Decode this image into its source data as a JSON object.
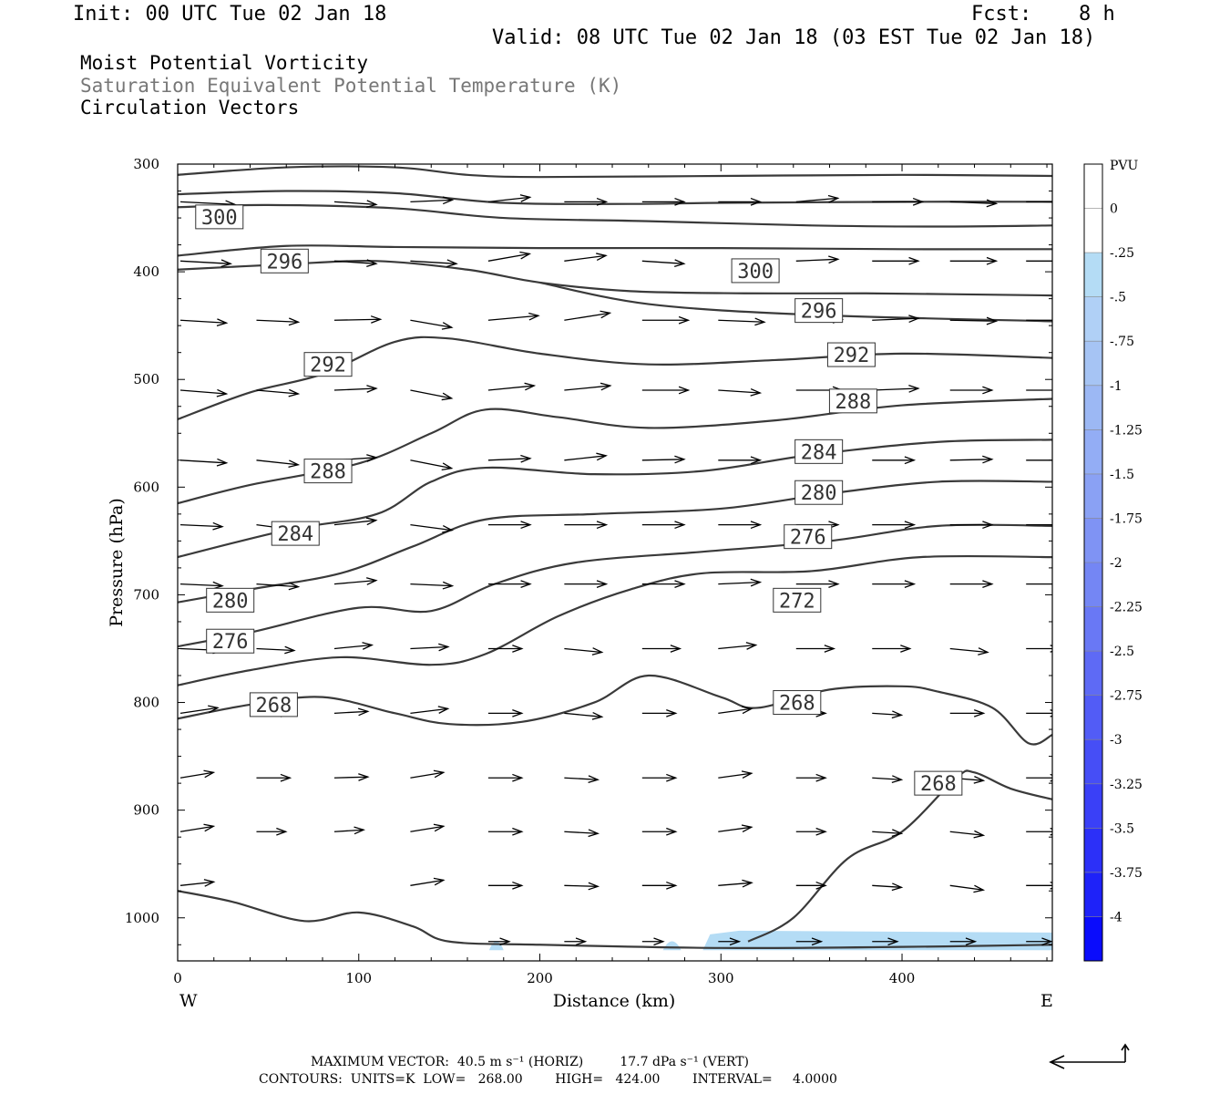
{
  "header": {
    "init": "Init: 00 UTC Tue 02 Jan 18",
    "fcst_label": "Fcst:",
    "fcst_value": "8 h",
    "valid": "Valid: 08 UTC Tue 02 Jan 18 (03 EST Tue 02 Jan 18)"
  },
  "legend": {
    "line1": "Moist Potential Vorticity",
    "line2": "Saturation Equivalent Potential Temperature (K)",
    "line3": "Circulation Vectors"
  },
  "colors": {
    "contour": "#3a3a3a",
    "vector": "#000000",
    "mpv_fill": "#b4dcf5"
  },
  "footer": {
    "max_vector": "MAXIMUM VECTOR:  40.5 m s⁻¹ (HORIZ)         17.7 dPa s⁻¹ (VERT)",
    "contours": "CONTOURS:  UNITS=K  LOW=   268.00        HIGH=   424.00        INTERVAL=     4.0000"
  },
  "chart_data": {
    "type": "line",
    "xlabel": "Distance (km)",
    "ylabel": "Pressure (hPa)",
    "xlim": [
      0,
      483
    ],
    "ylim": [
      300,
      1040
    ],
    "y_inverted": true,
    "x_ticks": [
      0,
      100,
      200,
      300,
      400
    ],
    "y_ticks": [
      300,
      400,
      500,
      600,
      700,
      800,
      900,
      1000
    ],
    "x_end_labels": {
      "left": "W",
      "right": "E"
    },
    "colorbar": {
      "title": "PVU",
      "levels": [
        "0",
        "-.25",
        "-.5",
        "-.75",
        "-1",
        "-1.25",
        "-1.5",
        "-1.75",
        "-2",
        "-2.25",
        "-2.5",
        "-2.75",
        "-3",
        "-3.25",
        "-3.5",
        "-3.75",
        "-4"
      ],
      "colors": [
        "#ffffff",
        "#ffffff",
        "#b4dcf5",
        "#b0d0f6",
        "#a6c4f4",
        "#9cb8f4",
        "#93adf5",
        "#8aa1f4",
        "#7f93f4",
        "#7486f4",
        "#6978f5",
        "#5e6af5",
        "#525cf6",
        "#464ef6",
        "#3a40f7",
        "#2c30f8",
        "#1e22f9",
        "#0a0cfc"
      ]
    },
    "contours": [
      {
        "level": "",
        "points": [
          [
            0,
            310
          ],
          [
            60,
            303
          ],
          [
            120,
            303
          ],
          [
            160,
            310
          ],
          [
            200,
            312
          ],
          [
            300,
            311
          ],
          [
            400,
            310
          ],
          [
            483,
            311
          ]
        ]
      },
      {
        "level": "",
        "points": [
          [
            0,
            328
          ],
          [
            60,
            325
          ],
          [
            120,
            327
          ],
          [
            180,
            336
          ],
          [
            250,
            337
          ],
          [
            300,
            336
          ],
          [
            400,
            335
          ],
          [
            483,
            335
          ]
        ]
      },
      {
        "level": "300",
        "points": [
          [
            0,
            340
          ],
          [
            50,
            338
          ],
          [
            120,
            341
          ],
          [
            180,
            350
          ],
          [
            260,
            353
          ],
          [
            350,
            357
          ],
          [
            420,
            358
          ],
          [
            483,
            357
          ]
        ]
      },
      {
        "level": "",
        "points": [
          [
            0,
            385
          ],
          [
            60,
            376
          ],
          [
            120,
            377
          ],
          [
            200,
            378
          ],
          [
            300,
            378
          ],
          [
            400,
            379
          ],
          [
            483,
            379
          ]
        ]
      },
      {
        "level": "296",
        "points": [
          [
            0,
            398
          ],
          [
            60,
            393
          ],
          [
            110,
            390
          ],
          [
            160,
            398
          ],
          [
            200,
            410
          ],
          [
            250,
            418
          ],
          [
            313,
            420
          ],
          [
            380,
            420
          ],
          [
            483,
            422
          ]
        ]
      },
      {
        "level": "",
        "points": [
          [
            200,
            410
          ],
          [
            260,
            430
          ],
          [
            350,
            440
          ],
          [
            483,
            446
          ]
        ]
      },
      {
        "level": "292",
        "points": [
          [
            0,
            537
          ],
          [
            40,
            512
          ],
          [
            80,
            495
          ],
          [
            120,
            465
          ],
          [
            150,
            462
          ],
          [
            200,
            476
          ],
          [
            260,
            486
          ],
          [
            330,
            482
          ],
          [
            400,
            476
          ],
          [
            483,
            480
          ]
        ]
      },
      {
        "level": "288",
        "points": [
          [
            0,
            615
          ],
          [
            40,
            598
          ],
          [
            100,
            578
          ],
          [
            140,
            550
          ],
          [
            170,
            528
          ],
          [
            210,
            535
          ],
          [
            260,
            545
          ],
          [
            330,
            538
          ],
          [
            400,
            524
          ],
          [
            483,
            518
          ]
        ]
      },
      {
        "level": "284",
        "points": [
          [
            0,
            665
          ],
          [
            60,
            640
          ],
          [
            110,
            625
          ],
          [
            140,
            595
          ],
          [
            170,
            582
          ],
          [
            230,
            588
          ],
          [
            290,
            585
          ],
          [
            350,
            570
          ],
          [
            420,
            558
          ],
          [
            483,
            556
          ]
        ]
      },
      {
        "level": "280",
        "points": [
          [
            0,
            707
          ],
          [
            40,
            695
          ],
          [
            90,
            680
          ],
          [
            130,
            655
          ],
          [
            170,
            630
          ],
          [
            230,
            625
          ],
          [
            300,
            620
          ],
          [
            360,
            606
          ],
          [
            420,
            595
          ],
          [
            483,
            595
          ]
        ]
      },
      {
        "level": "276",
        "points": [
          [
            0,
            748
          ],
          [
            40,
            735
          ],
          [
            100,
            712
          ],
          [
            140,
            715
          ],
          [
            175,
            690
          ],
          [
            220,
            670
          ],
          [
            290,
            660
          ],
          [
            360,
            650
          ],
          [
            420,
            636
          ],
          [
            483,
            636
          ]
        ]
      },
      {
        "level": "272",
        "points": [
          [
            0,
            784
          ],
          [
            40,
            770
          ],
          [
            90,
            758
          ],
          [
            140,
            765
          ],
          [
            170,
            755
          ],
          [
            210,
            720
          ],
          [
            250,
            695
          ],
          [
            290,
            680
          ],
          [
            350,
            678
          ],
          [
            410,
            665
          ],
          [
            483,
            665
          ]
        ]
      },
      {
        "level": "268",
        "points": [
          [
            0,
            815
          ],
          [
            40,
            802
          ],
          [
            80,
            795
          ],
          [
            120,
            810
          ],
          [
            150,
            820
          ],
          [
            190,
            818
          ],
          [
            230,
            800
          ],
          [
            260,
            775
          ],
          [
            300,
            795
          ],
          [
            320,
            805
          ],
          [
            360,
            788
          ],
          [
            400,
            785
          ],
          [
            420,
            790
          ],
          [
            450,
            805
          ],
          [
            470,
            838
          ],
          [
            483,
            830
          ]
        ]
      },
      {
        "level": "268",
        "points": [
          [
            315,
            1022
          ],
          [
            340,
            1000
          ],
          [
            370,
            945
          ],
          [
            400,
            920
          ],
          [
            430,
            870
          ],
          [
            440,
            865
          ],
          [
            460,
            880
          ],
          [
            483,
            890
          ]
        ]
      },
      {
        "level": "",
        "points": [
          [
            0,
            975
          ],
          [
            30,
            985
          ],
          [
            70,
            1003
          ],
          [
            100,
            995
          ],
          [
            130,
            1008
          ],
          [
            150,
            1022
          ],
          [
            200,
            1025
          ],
          [
            300,
            1028
          ],
          [
            400,
            1027
          ],
          [
            483,
            1025
          ]
        ]
      }
    ],
    "contour_labels": [
      {
        "text": "300",
        "x": 18,
        "y": 349
      },
      {
        "text": "296",
        "x": 54,
        "y": 390
      },
      {
        "text": "300",
        "x": 314,
        "y": 399
      },
      {
        "text": "296",
        "x": 349,
        "y": 436
      },
      {
        "text": "292",
        "x": 78,
        "y": 486
      },
      {
        "text": "292",
        "x": 367,
        "y": 477
      },
      {
        "text": "288",
        "x": 368,
        "y": 520
      },
      {
        "text": "288",
        "x": 78,
        "y": 585
      },
      {
        "text": "284",
        "x": 349,
        "y": 567
      },
      {
        "text": "280",
        "x": 349,
        "y": 605
      },
      {
        "text": "284",
        "x": 60,
        "y": 643
      },
      {
        "text": "276",
        "x": 343,
        "y": 646
      },
      {
        "text": "280",
        "x": 24,
        "y": 705
      },
      {
        "text": "272",
        "x": 337,
        "y": 705
      },
      {
        "text": "276",
        "x": 24,
        "y": 743
      },
      {
        "text": "268",
        "x": 48,
        "y": 802
      },
      {
        "text": "268",
        "x": 337,
        "y": 800
      },
      {
        "text": "268",
        "x": 415,
        "y": 875
      }
    ],
    "vector_field": {
      "x": [
        0,
        42,
        85,
        127,
        170,
        212,
        255,
        297,
        340,
        382,
        425,
        467
      ],
      "rows": [
        {
          "p": 335,
          "u": [
            1.3,
            0,
            1.0,
            1.0,
            1.0,
            1.0,
            1.0,
            1.0,
            1.0,
            1.2,
            1.1,
            1.0
          ],
          "w": [
            -3,
            0,
            -3,
            2,
            5,
            0,
            0,
            0,
            4,
            0,
            -2,
            0
          ]
        },
        {
          "p": 390,
          "u": [
            1.2,
            0,
            1.0,
            1.1,
            1.0,
            1.0,
            1.0,
            0,
            1.0,
            1.1,
            1.1,
            1.0
          ],
          "w": [
            -3,
            0,
            -3,
            -3,
            8,
            6,
            -3,
            0,
            2,
            0,
            0,
            0
          ]
        },
        {
          "p": 445,
          "u": [
            1.1,
            1.0,
            1.1,
            1.0,
            1.2,
            1.1,
            1.1,
            1.1,
            1.1,
            1.1,
            1.1,
            1.0
          ],
          "w": [
            -3,
            -2,
            1,
            -8,
            5,
            8,
            0,
            -2,
            1,
            2,
            -1,
            0
          ]
        },
        {
          "p": 510,
          "u": [
            1.1,
            1.0,
            1.0,
            1.0,
            1.1,
            1.1,
            1.1,
            1.0,
            1.1,
            1.1,
            1.0,
            1.0
          ],
          "w": [
            -4,
            -4,
            2,
            -9,
            5,
            5,
            0,
            -3,
            0,
            2,
            0,
            0
          ]
        },
        {
          "p": 575,
          "u": [
            1.1,
            1.0,
            1.0,
            1.0,
            1.0,
            1.0,
            1.0,
            1.0,
            1.0,
            1.0,
            1.0,
            1.0
          ],
          "w": [
            -3,
            -5,
            3,
            -9,
            2,
            5,
            1,
            0,
            2,
            0,
            1,
            0
          ]
        },
        {
          "p": 635,
          "u": [
            1.0,
            1.0,
            1.0,
            1.0,
            1.0,
            1.0,
            1.0,
            1.0,
            1.0,
            1.0,
            1.0,
            1.0
          ],
          "w": [
            -2,
            -6,
            5,
            -6,
            0,
            0,
            0,
            0,
            0,
            0,
            0,
            0
          ]
        },
        {
          "p": 690,
          "u": [
            1.0,
            1.0,
            1.0,
            1.0,
            1.0,
            1.0,
            1.0,
            1.0,
            1.0,
            1.0,
            1.0,
            1.0
          ],
          "w": [
            -2,
            -3,
            4,
            -2,
            0,
            0,
            0,
            2,
            0,
            0,
            0,
            0
          ]
        },
        {
          "p": 750,
          "u": [
            1.0,
            0.9,
            0.9,
            0.9,
            0.8,
            0.9,
            0.9,
            0.9,
            0.9,
            0.9,
            0.9,
            0.8
          ],
          "w": [
            -2,
            -2,
            4,
            2,
            0,
            -4,
            0,
            4,
            0,
            0,
            -4,
            0
          ]
        },
        {
          "p": 810,
          "u": [
            0.9,
            0.8,
            0.8,
            0.9,
            0.8,
            0.9,
            0.8,
            0.8,
            0.7,
            0.7,
            0.8,
            0.8
          ],
          "w": [
            6,
            0,
            2,
            5,
            0,
            -4,
            0,
            5,
            0,
            -2,
            0,
            0
          ]
        },
        {
          "p": 870,
          "u": [
            0.8,
            0.8,
            0.8,
            0.8,
            0.8,
            0.8,
            0.8,
            0.8,
            0.7,
            0.7,
            0.8,
            0.8
          ],
          "w": [
            6,
            0,
            1,
            6,
            0,
            -2,
            0,
            5,
            0,
            -2,
            -3,
            0
          ]
        },
        {
          "p": 920,
          "u": [
            0.8,
            0.7,
            0.7,
            0.8,
            0.8,
            0.8,
            0.8,
            0.8,
            0.7,
            0.7,
            0.8,
            0.8
          ],
          "w": [
            6,
            0,
            2,
            6,
            0,
            -2,
            0,
            5,
            0,
            -2,
            -4,
            0
          ]
        },
        {
          "p": 970,
          "u": [
            0.8,
            0,
            0,
            0.8,
            0.8,
            0.8,
            0.8,
            0.8,
            0.7,
            0.7,
            0.8,
            0.8
          ],
          "w": [
            4,
            0,
            0,
            6,
            0,
            -1,
            0,
            3,
            0,
            -2,
            -5,
            0
          ]
        },
        {
          "p": 1022,
          "u": [
            0,
            0,
            0,
            0,
            0.5,
            0.5,
            0.5,
            0.5,
            0.6,
            0.6,
            0.6,
            0.6
          ],
          "w": [
            0,
            0,
            0,
            0,
            0,
            0,
            0,
            0,
            0,
            0,
            0,
            0
          ]
        }
      ]
    },
    "mpv_shading": {
      "level": "-.5",
      "x_range": [
        290,
        483
      ],
      "p_range": [
        1012,
        1030
      ]
    }
  }
}
